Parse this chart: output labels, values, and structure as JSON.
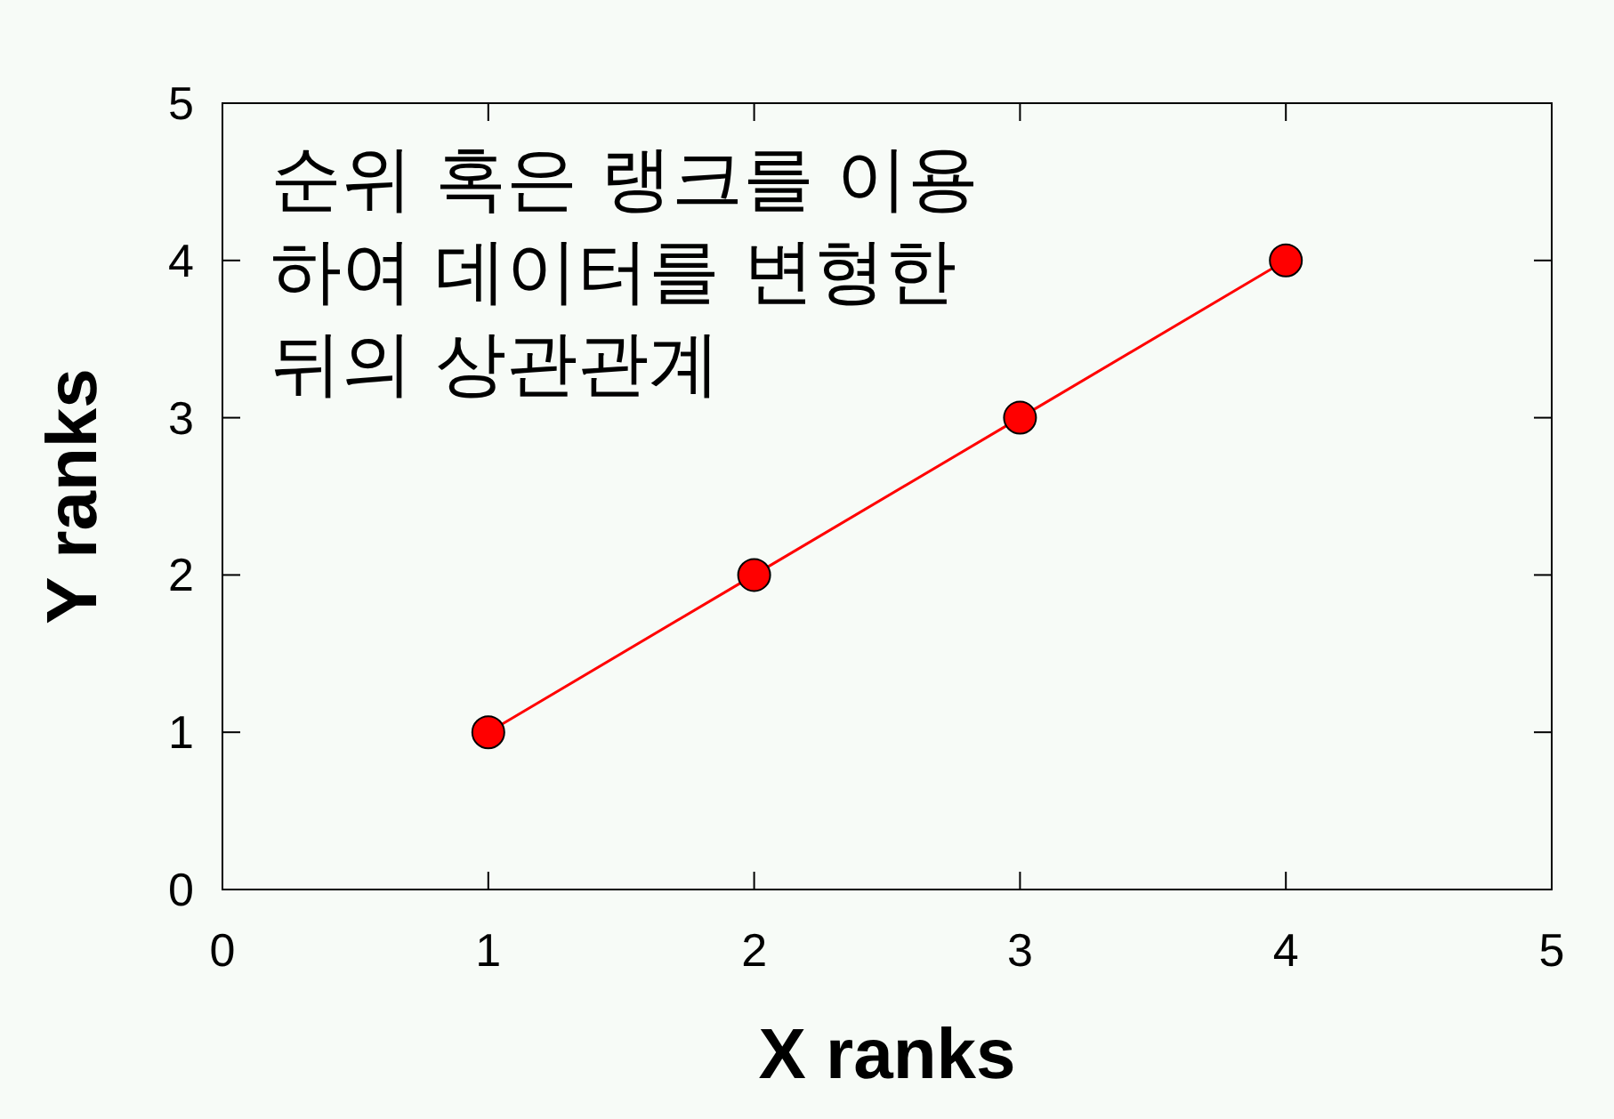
{
  "chart_data": {
    "type": "line",
    "xlabel": "X ranks",
    "ylabel": "Y ranks",
    "annotations": [
      "순위 혹은 랭크를 이용\n하여 데이터를 변형한\n뒤의 상관관계"
    ],
    "x": [
      1,
      2,
      3,
      4
    ],
    "series": [
      {
        "color": "#ff0000",
        "values": [
          1,
          2,
          3,
          4
        ]
      }
    ],
    "xlim": [
      0,
      5
    ],
    "ylim": [
      0,
      5
    ],
    "xticks": [
      0,
      1,
      2,
      3,
      4,
      5
    ],
    "yticks": [
      0,
      1,
      2,
      3,
      4,
      5
    ],
    "marker": "circle",
    "line_style": "solid"
  }
}
